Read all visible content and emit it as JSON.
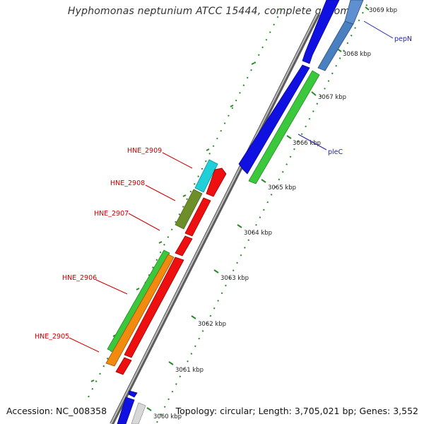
{
  "header": {
    "title": "Hyphomonas neptunium ATCC 15444, complete genome"
  },
  "footer": {
    "accession": "Accession: NC_008358",
    "summary": "Topology: circular; Length: 3,705,021 bp; Genes: 3,552"
  },
  "ticks": [
    {
      "label": "3069 kbp"
    },
    {
      "label": "3068 kbp"
    },
    {
      "label": "3067 kbp"
    },
    {
      "label": "3066 kbp"
    },
    {
      "label": "3065 kbp"
    },
    {
      "label": "3064 kbp"
    },
    {
      "label": "3063 kbp"
    },
    {
      "label": "3062 kbp"
    },
    {
      "label": "3061 kbp"
    },
    {
      "label": "3060 kbp"
    }
  ],
  "gene_labels": [
    {
      "name": "HNE_2909",
      "color": "#cc0000"
    },
    {
      "name": "HNE_2908",
      "color": "#cc0000"
    },
    {
      "name": "HNE_2907",
      "color": "#cc0000"
    },
    {
      "name": "HNE_2906",
      "color": "#cc0000"
    },
    {
      "name": "HNE_2905",
      "color": "#cc0000"
    },
    {
      "name": "pepN",
      "color": "#1f1fb3"
    },
    {
      "name": "pleC",
      "color": "#1f1fb3"
    }
  ],
  "colors": {
    "backbone": "#8a8a8a",
    "blue_feature": "#1010e0",
    "steelblue_feature": "#4a7fc0",
    "green_feature": "#3cc83c",
    "red_feature": "#ee1010",
    "cyan_feature": "#20d0d8",
    "olive_feature": "#6e8e2a",
    "orange_feature": "#f28a10",
    "tick_green": "#2a8a2a"
  }
}
